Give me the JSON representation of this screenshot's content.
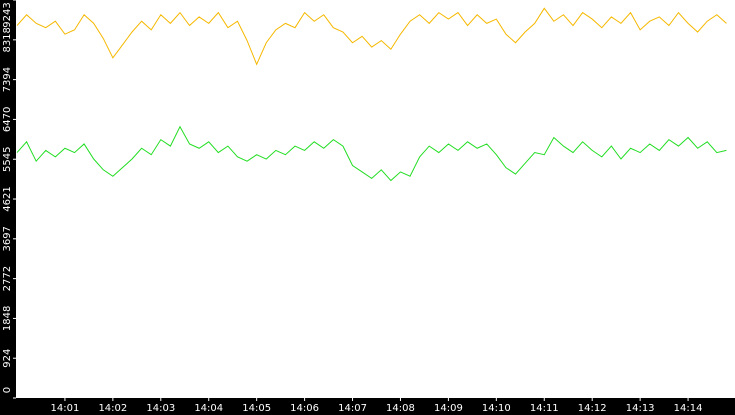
{
  "chart_data": {
    "type": "line",
    "x": [
      0,
      0.2,
      0.4,
      0.6,
      0.8,
      1.0,
      1.2,
      1.4,
      1.6,
      1.8,
      2.0,
      2.2,
      2.4,
      2.6,
      2.8,
      3.0,
      3.2,
      3.4,
      3.6,
      3.8,
      4.0,
      4.2,
      4.4,
      4.6,
      4.8,
      5.0,
      5.2,
      5.4,
      5.6,
      5.8,
      6.0,
      6.2,
      6.4,
      6.6,
      6.8,
      7.0,
      7.2,
      7.4,
      7.6,
      7.8,
      8.0,
      8.2,
      8.4,
      8.6,
      8.8,
      9.0,
      9.2,
      9.4,
      9.6,
      9.8,
      10.0,
      10.2,
      10.4,
      10.6,
      10.8,
      11.0,
      11.2,
      11.4,
      11.6,
      11.8,
      12.0,
      12.2,
      12.4,
      12.6,
      12.8,
      13.0,
      13.2,
      13.4,
      13.6,
      13.8,
      14.0,
      14.2,
      14.4,
      14.6,
      14.8
    ],
    "series": [
      {
        "color": "#f5b800",
        "values": [
          8650,
          8900,
          8700,
          8600,
          8750,
          8450,
          8550,
          8900,
          8700,
          8350,
          7900,
          8200,
          8500,
          8750,
          8550,
          8900,
          8700,
          8950,
          8650,
          8850,
          8700,
          8950,
          8600,
          8750,
          8300,
          7750,
          8250,
          8550,
          8700,
          8600,
          8950,
          8750,
          8900,
          8600,
          8500,
          8250,
          8400,
          8150,
          8300,
          8100,
          8450,
          8750,
          8900,
          8700,
          8950,
          8800,
          8950,
          8650,
          8900,
          8700,
          8800,
          8450,
          8250,
          8500,
          8700,
          9050,
          8750,
          8900,
          8650,
          8950,
          8800,
          8600,
          8850,
          8700,
          8950,
          8550,
          8750,
          8850,
          8650,
          8950,
          8700,
          8500,
          8750,
          8900,
          8700
        ]
      },
      {
        "color": "#22dd22",
        "values": [
          5700,
          5950,
          5500,
          5750,
          5600,
          5800,
          5700,
          5900,
          5550,
          5300,
          5150,
          5350,
          5550,
          5800,
          5650,
          6000,
          5850,
          6300,
          5900,
          5800,
          5950,
          5700,
          5850,
          5600,
          5500,
          5650,
          5550,
          5750,
          5650,
          5850,
          5750,
          5950,
          5800,
          6000,
          5850,
          5400,
          5250,
          5100,
          5300,
          5050,
          5250,
          5150,
          5600,
          5850,
          5700,
          5900,
          5750,
          5950,
          5800,
          5900,
          5650,
          5350,
          5200,
          5450,
          5700,
          5650,
          6050,
          5850,
          5700,
          5950,
          5750,
          5600,
          5850,
          5550,
          5800,
          5700,
          5900,
          5750,
          6000,
          5850,
          6050,
          5800,
          5950,
          5700,
          5750
        ]
      }
    ],
    "xlim": [
      0,
      15
    ],
    "xticks": [
      {
        "value": 1,
        "label": "14:01"
      },
      {
        "value": 2,
        "label": "14:02"
      },
      {
        "value": 3,
        "label": "14:03"
      },
      {
        "value": 4,
        "label": "14:04"
      },
      {
        "value": 5,
        "label": "14:05"
      },
      {
        "value": 6,
        "label": "14:06"
      },
      {
        "value": 7,
        "label": "14:07"
      },
      {
        "value": 8,
        "label": "14:08"
      },
      {
        "value": 9,
        "label": "14:09"
      },
      {
        "value": 10,
        "label": "14:10"
      },
      {
        "value": 11,
        "label": "14:11"
      },
      {
        "value": 12,
        "label": "14:12"
      },
      {
        "value": 13,
        "label": "14:13"
      },
      {
        "value": 14,
        "label": "14:14"
      }
    ],
    "ylim": [
      0,
      9243
    ],
    "yticks": [
      0,
      924,
      1848,
      2772,
      3697,
      4621,
      5545,
      6470,
      7394,
      8318,
      9243
    ]
  }
}
